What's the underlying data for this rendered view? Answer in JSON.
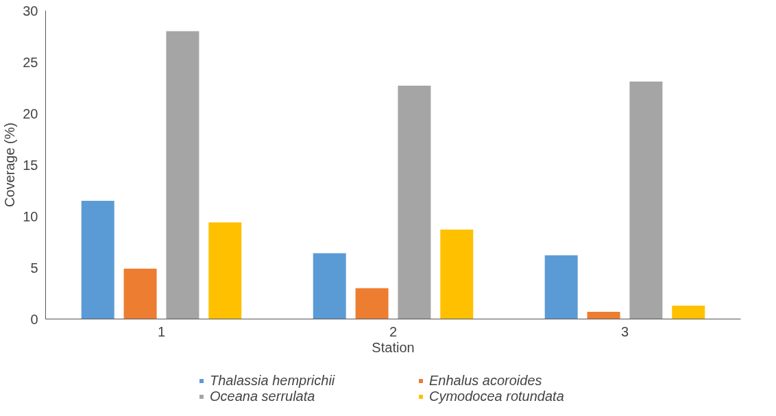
{
  "chart_data": {
    "type": "bar",
    "xlabel": "Station",
    "ylabel": "Coverage (%)",
    "categories": [
      "1",
      "2",
      "3"
    ],
    "series": [
      {
        "name": "Thalassia hemprichii",
        "color": "#5b9bd5",
        "values": [
          11.5,
          6.4,
          6.2
        ]
      },
      {
        "name": "Enhalus acoroides",
        "color": "#ed7d31",
        "values": [
          4.9,
          3.0,
          0.7
        ]
      },
      {
        "name": "Oceana serrulata",
        "color": "#a5a5a5",
        "values": [
          28.0,
          22.7,
          23.1
        ]
      },
      {
        "name": "Cymodocea rotundata",
        "color": "#ffc000",
        "values": [
          9.4,
          8.7,
          1.3
        ]
      }
    ],
    "ylim": [
      0,
      30
    ],
    "yticks": [
      0,
      5,
      10,
      15,
      20,
      25,
      30
    ],
    "grid": false,
    "legend": "bottom"
  }
}
